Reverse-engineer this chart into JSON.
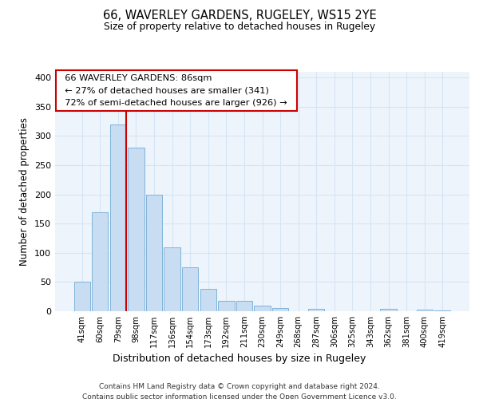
{
  "title": "66, WAVERLEY GARDENS, RUGELEY, WS15 2YE",
  "subtitle": "Size of property relative to detached houses in Rugeley",
  "xlabel": "Distribution of detached houses by size in Rugeley",
  "ylabel": "Number of detached properties",
  "footer_line1": "Contains HM Land Registry data © Crown copyright and database right 2024.",
  "footer_line2": "Contains public sector information licensed under the Open Government Licence v3.0.",
  "bin_labels": [
    "41sqm",
    "60sqm",
    "79sqm",
    "98sqm",
    "117sqm",
    "136sqm",
    "154sqm",
    "173sqm",
    "192sqm",
    "211sqm",
    "230sqm",
    "249sqm",
    "268sqm",
    "287sqm",
    "306sqm",
    "325sqm",
    "343sqm",
    "362sqm",
    "381sqm",
    "400sqm",
    "419sqm"
  ],
  "bar_heights": [
    50,
    170,
    320,
    280,
    200,
    110,
    75,
    38,
    18,
    18,
    10,
    5,
    0,
    4,
    0,
    0,
    0,
    4,
    0,
    3,
    2
  ],
  "bar_color": "#c9ddf2",
  "bar_edge_color": "#7fb3d9",
  "highlight_line_color": "#cc0000",
  "annotation_title": "66 WAVERLEY GARDENS: 86sqm",
  "annotation_line1": "← 27% of detached houses are smaller (341)",
  "annotation_line2": "72% of semi-detached houses are larger (926) →",
  "annotation_box_color": "white",
  "annotation_box_edge": "#cc0000",
  "ylim": [
    0,
    410
  ],
  "yticks": [
    0,
    50,
    100,
    150,
    200,
    250,
    300,
    350,
    400
  ]
}
